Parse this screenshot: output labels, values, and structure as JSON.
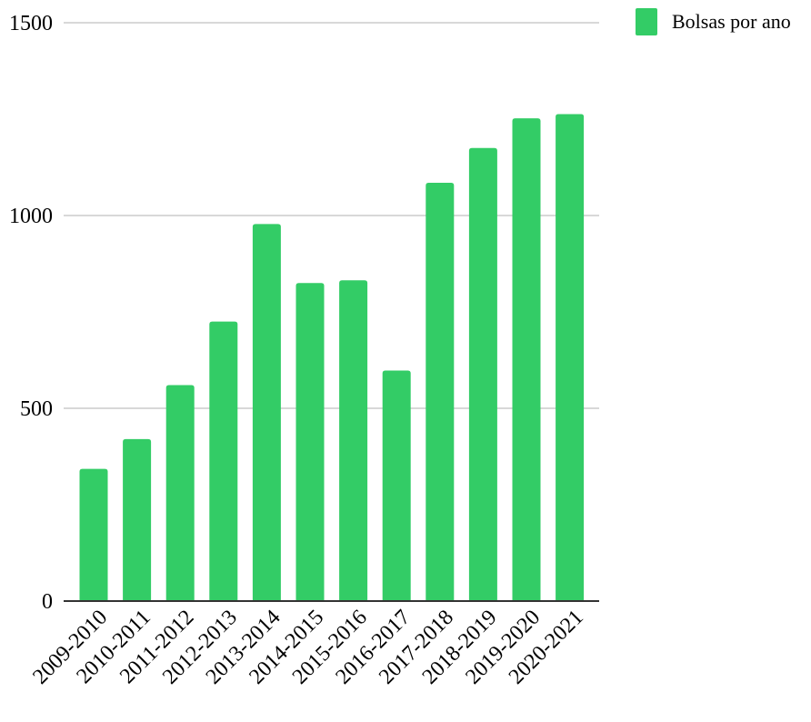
{
  "chart_data": {
    "type": "bar",
    "categories": [
      "2009-2010",
      "2010-2011",
      "2011-2012",
      "2012-2013",
      "2013-2014",
      "2014-2015",
      "2015-2016",
      "2016-2017",
      "2017-2018",
      "2018-2019",
      "2019-2020",
      "2020-2021"
    ],
    "series": [
      {
        "name": "Bolsas por ano",
        "values": [
          343,
          420,
          560,
          725,
          978,
          825,
          832,
          598,
          1085,
          1175,
          1252,
          1263
        ],
        "color": "#33cc66"
      }
    ],
    "yticks": [
      0,
      500,
      1000,
      1500
    ],
    "ylim": [
      0,
      1500
    ],
    "grid": true,
    "legend": "top-right",
    "title": "",
    "xlabel": "",
    "ylabel": ""
  }
}
